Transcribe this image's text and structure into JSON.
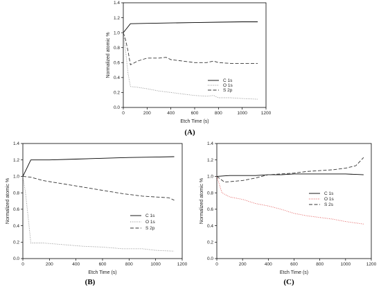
{
  "figure": {
    "panels": [
      "(A)",
      "(B)",
      "(C)"
    ]
  },
  "chart_data": [
    {
      "type": "line",
      "panel": "(A)",
      "xlabel": "Etch Time (s)",
      "ylabel": "Normalized atomic %",
      "xlim": [
        0,
        1200
      ],
      "ylim": [
        0,
        1.4
      ],
      "xticks": [
        0,
        200,
        400,
        600,
        800,
        1000,
        1200
      ],
      "yticks": [
        0.0,
        0.2,
        0.4,
        0.6,
        0.8,
        1.0,
        1.2,
        1.4
      ],
      "legend_position": "bottom-right",
      "series": [
        {
          "name": "C 1s",
          "color": "#000000",
          "dash": "solid",
          "x": [
            0,
            60,
            200,
            400,
            600,
            800,
            1000,
            1130
          ],
          "y": [
            1.0,
            1.12,
            1.125,
            1.13,
            1.135,
            1.14,
            1.145,
            1.145
          ]
        },
        {
          "name": "O 1s",
          "color": "#888888",
          "dash": "dot",
          "x": [
            0,
            20,
            40,
            60,
            120,
            200,
            300,
            400,
            500,
            600,
            700,
            760,
            800,
            900,
            1000,
            1130
          ],
          "y": [
            1.0,
            0.75,
            0.45,
            0.28,
            0.27,
            0.25,
            0.22,
            0.2,
            0.18,
            0.16,
            0.15,
            0.16,
            0.13,
            0.13,
            0.12,
            0.11
          ]
        },
        {
          "name": "S 2p",
          "color": "#333333",
          "dash": "dash",
          "x": [
            0,
            20,
            40,
            60,
            120,
            200,
            300,
            360,
            400,
            500,
            600,
            700,
            760,
            800,
            900,
            1000,
            1130
          ],
          "y": [
            1.0,
            0.9,
            0.75,
            0.57,
            0.62,
            0.66,
            0.66,
            0.67,
            0.64,
            0.62,
            0.6,
            0.6,
            0.62,
            0.6,
            0.59,
            0.59,
            0.59
          ]
        }
      ]
    },
    {
      "type": "line",
      "panel": "(B)",
      "xlabel": "Etch Time (s)",
      "ylabel": "Normalized atomic %",
      "xlim": [
        0,
        1200
      ],
      "ylim": [
        0,
        1.4
      ],
      "xticks": [
        0,
        200,
        400,
        600,
        800,
        1000,
        1200
      ],
      "yticks": [
        0.0,
        0.2,
        0.4,
        0.6,
        0.8,
        1.0,
        1.2,
        1.4
      ],
      "legend_position": "bottom-right",
      "series": [
        {
          "name": "C 1s",
          "color": "#000000",
          "dash": "solid",
          "x": [
            0,
            60,
            200,
            400,
            600,
            800,
            1000,
            1140
          ],
          "y": [
            1.0,
            1.2,
            1.2,
            1.21,
            1.22,
            1.23,
            1.235,
            1.24
          ]
        },
        {
          "name": "O 1s",
          "color": "#888888",
          "dash": "dot",
          "x": [
            0,
            20,
            40,
            60,
            150,
            300,
            450,
            600,
            750,
            900,
            1000,
            1140
          ],
          "y": [
            1.0,
            0.8,
            0.5,
            0.19,
            0.19,
            0.17,
            0.15,
            0.14,
            0.12,
            0.12,
            0.1,
            0.09
          ]
        },
        {
          "name": "S 2p",
          "color": "#333333",
          "dash": "dash",
          "x": [
            0,
            60,
            150,
            300,
            450,
            600,
            750,
            900,
            1000,
            1100,
            1140
          ],
          "y": [
            1.0,
            0.99,
            0.95,
            0.91,
            0.87,
            0.83,
            0.79,
            0.76,
            0.75,
            0.74,
            0.71
          ]
        }
      ]
    },
    {
      "type": "line",
      "panel": "(C)",
      "xlabel": "Etch Time (s)",
      "ylabel": "Normalized atomic %",
      "xlim": [
        0,
        1200
      ],
      "ylim": [
        0,
        1.4
      ],
      "xticks": [
        0,
        200,
        400,
        600,
        800,
        1000,
        1200
      ],
      "yticks": [
        0.0,
        0.2,
        0.4,
        0.6,
        0.8,
        1.0,
        1.2,
        1.4
      ],
      "legend_position": "bottom-right",
      "series": [
        {
          "name": "C 1s",
          "color": "#000000",
          "dash": "solid",
          "x": [
            0,
            100,
            200,
            300,
            400,
            500,
            600,
            700,
            800,
            900,
            1000,
            1140
          ],
          "y": [
            1.0,
            1.01,
            1.01,
            1.01,
            1.02,
            1.02,
            1.03,
            1.03,
            1.03,
            1.03,
            1.03,
            1.02
          ]
        },
        {
          "name": "O 1s",
          "color": "#e05050",
          "dash": "dot",
          "x": [
            0,
            40,
            100,
            200,
            300,
            400,
            500,
            600,
            700,
            800,
            900,
            1000,
            1140
          ],
          "y": [
            1.0,
            0.8,
            0.75,
            0.72,
            0.67,
            0.64,
            0.6,
            0.55,
            0.52,
            0.5,
            0.48,
            0.45,
            0.42
          ]
        },
        {
          "name": "S 2s",
          "color": "#333333",
          "dash": "dash",
          "x": [
            0,
            60,
            200,
            300,
            400,
            500,
            600,
            700,
            800,
            900,
            1000,
            1080,
            1140
          ],
          "y": [
            1.0,
            0.93,
            0.95,
            0.98,
            1.02,
            1.03,
            1.04,
            1.06,
            1.07,
            1.08,
            1.1,
            1.13,
            1.23
          ]
        }
      ]
    }
  ]
}
